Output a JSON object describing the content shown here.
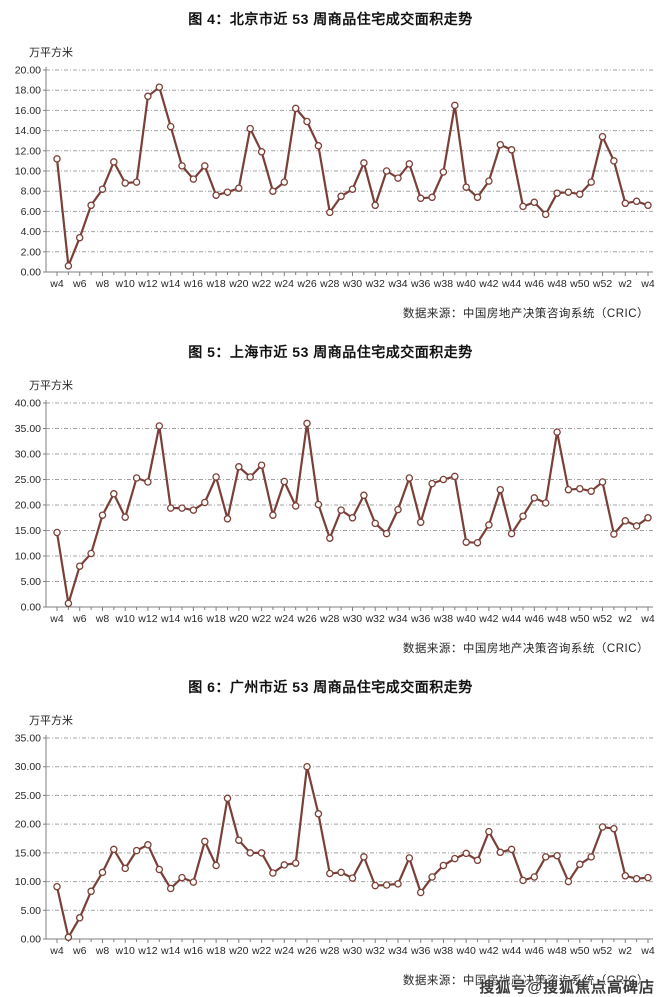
{
  "page": {
    "background_color": "#ffffff",
    "accent_line_color": "#7a4038",
    "gridline_color": "#a3a3a3",
    "axis_color": "#7f7f7f",
    "unit_label": "万平方米",
    "source_caption": "数据来源：中国房地产决策咨询系统（CRIC）",
    "watermark": "搜狐号@搜狐焦点高碑店"
  },
  "chart_data": [
    {
      "type": "line",
      "title": "图 4：北京市近 53 周商品住宅成交面积走势",
      "ylabel": "万平方米",
      "source": "数据来源：中国房地产决策咨询系统（CRIC）",
      "ylim": [
        0,
        20
      ],
      "ystep": 2,
      "grid": "horizontal-dashed",
      "legend": "none",
      "x_tick_labels": [
        "w4",
        "w6",
        "w8",
        "w10",
        "w12",
        "w14",
        "w16",
        "w18",
        "w20",
        "w22",
        "w24",
        "w26",
        "w28",
        "w30",
        "w32",
        "w34",
        "w36",
        "w38",
        "w40",
        "w42",
        "w44",
        "w46",
        "w48",
        "w50",
        "w52",
        "w2",
        "w4"
      ],
      "x": [
        "w4",
        "w5",
        "w6",
        "w7",
        "w8",
        "w9",
        "w10",
        "w11",
        "w12",
        "w13",
        "w14",
        "w15",
        "w16",
        "w17",
        "w18",
        "w19",
        "w20",
        "w21",
        "w22",
        "w23",
        "w24",
        "w25",
        "w26",
        "w27",
        "w28",
        "w29",
        "w30",
        "w31",
        "w32",
        "w33",
        "w34",
        "w35",
        "w36",
        "w37",
        "w38",
        "w39",
        "w40",
        "w41",
        "w42",
        "w43",
        "w44",
        "w45",
        "w46",
        "w47",
        "w48",
        "w49",
        "w50",
        "w51",
        "w52",
        "w1",
        "w2",
        "w3",
        "w4"
      ],
      "values": [
        11.2,
        0.6,
        3.4,
        6.6,
        8.2,
        10.9,
        8.8,
        8.9,
        17.4,
        18.3,
        14.4,
        10.5,
        9.2,
        10.5,
        7.6,
        7.9,
        8.3,
        14.2,
        11.9,
        8.0,
        8.9,
        16.2,
        14.9,
        12.5,
        5.9,
        7.5,
        8.2,
        10.8,
        6.6,
        10.0,
        9.3,
        10.7,
        7.3,
        7.4,
        9.9,
        16.5,
        8.4,
        7.4,
        9.0,
        12.6,
        12.1,
        6.5,
        6.9,
        5.7,
        7.8,
        7.9,
        7.7,
        8.9,
        13.4,
        11.0,
        6.8,
        7.0,
        6.6
      ]
    },
    {
      "type": "line",
      "title": "图 5：上海市近 53 周商品住宅成交面积走势",
      "ylabel": "万平方米",
      "source": "数据来源：中国房地产决策咨询系统（CRIC）",
      "ylim": [
        0,
        40
      ],
      "ystep": 5,
      "grid": "horizontal-dashed",
      "legend": "none",
      "x_tick_labels": [
        "w4",
        "w6",
        "w8",
        "w10",
        "w12",
        "w14",
        "w16",
        "w18",
        "w20",
        "w22",
        "w24",
        "w26",
        "w28",
        "w30",
        "w32",
        "w34",
        "w36",
        "w38",
        "w40",
        "w42",
        "w44",
        "w46",
        "w48",
        "w50",
        "w52",
        "w2",
        "w4"
      ],
      "x": [
        "w4",
        "w5",
        "w6",
        "w7",
        "w8",
        "w9",
        "w10",
        "w11",
        "w12",
        "w13",
        "w14",
        "w15",
        "w16",
        "w17",
        "w18",
        "w19",
        "w20",
        "w21",
        "w22",
        "w23",
        "w24",
        "w25",
        "w26",
        "w27",
        "w28",
        "w29",
        "w30",
        "w31",
        "w32",
        "w33",
        "w34",
        "w35",
        "w36",
        "w37",
        "w38",
        "w39",
        "w40",
        "w41",
        "w42",
        "w43",
        "w44",
        "w45",
        "w46",
        "w47",
        "w48",
        "w49",
        "w50",
        "w51",
        "w52",
        "w1",
        "w2",
        "w3",
        "w4"
      ],
      "values": [
        14.6,
        0.7,
        8.0,
        10.5,
        18.0,
        22.2,
        17.6,
        25.3,
        24.5,
        35.5,
        19.4,
        19.4,
        19.0,
        20.5,
        25.5,
        17.3,
        27.5,
        25.5,
        27.8,
        18.0,
        24.6,
        19.8,
        36.0,
        20.1,
        13.5,
        19.0,
        17.5,
        21.9,
        16.4,
        14.4,
        19.1,
        25.3,
        16.6,
        24.2,
        25.0,
        25.6,
        12.7,
        12.6,
        16.1,
        23.0,
        14.4,
        17.8,
        21.4,
        20.4,
        34.3,
        23.0,
        23.2,
        22.7,
        24.5,
        14.3,
        16.9,
        15.9,
        17.5
      ]
    },
    {
      "type": "line",
      "title": "图 6：广州市近 53 周商品住宅成交面积走势",
      "ylabel": "万平方米",
      "source": "数据来源：中国房地产决策咨询系统（CRIC）",
      "ylim": [
        0,
        35
      ],
      "ystep": 5,
      "grid": "horizontal-dashed",
      "legend": "none",
      "x_tick_labels": [
        "w4",
        "w6",
        "w8",
        "w10",
        "w12",
        "w14",
        "w16",
        "w18",
        "w20",
        "w22",
        "w24",
        "w26",
        "w28",
        "w30",
        "w32",
        "w34",
        "w36",
        "w38",
        "w40",
        "w42",
        "w44",
        "w46",
        "w48",
        "w50",
        "w52",
        "w2",
        "w4"
      ],
      "x": [
        "w4",
        "w5",
        "w6",
        "w7",
        "w8",
        "w9",
        "w10",
        "w11",
        "w12",
        "w13",
        "w14",
        "w15",
        "w16",
        "w17",
        "w18",
        "w19",
        "w20",
        "w21",
        "w22",
        "w23",
        "w24",
        "w25",
        "w26",
        "w27",
        "w28",
        "w29",
        "w30",
        "w31",
        "w32",
        "w33",
        "w34",
        "w35",
        "w36",
        "w37",
        "w38",
        "w39",
        "w40",
        "w41",
        "w42",
        "w43",
        "w44",
        "w45",
        "w46",
        "w47",
        "w48",
        "w49",
        "w50",
        "w51",
        "w52",
        "w1",
        "w2",
        "w3",
        "w4"
      ],
      "values": [
        9.1,
        0.3,
        3.7,
        8.3,
        11.6,
        15.6,
        12.3,
        15.4,
        16.4,
        12.1,
        8.8,
        10.7,
        9.9,
        17.0,
        12.8,
        24.5,
        17.2,
        15.0,
        15.0,
        11.5,
        12.9,
        13.2,
        30.0,
        21.8,
        11.4,
        11.6,
        10.6,
        14.3,
        9.3,
        9.4,
        9.6,
        14.1,
        8.1,
        10.8,
        12.8,
        14.0,
        14.9,
        13.7,
        18.7,
        15.1,
        15.6,
        10.2,
        10.8,
        14.3,
        14.5,
        10.0,
        13.0,
        14.3,
        19.5,
        19.2,
        11.0,
        10.5,
        10.7
      ]
    }
  ]
}
